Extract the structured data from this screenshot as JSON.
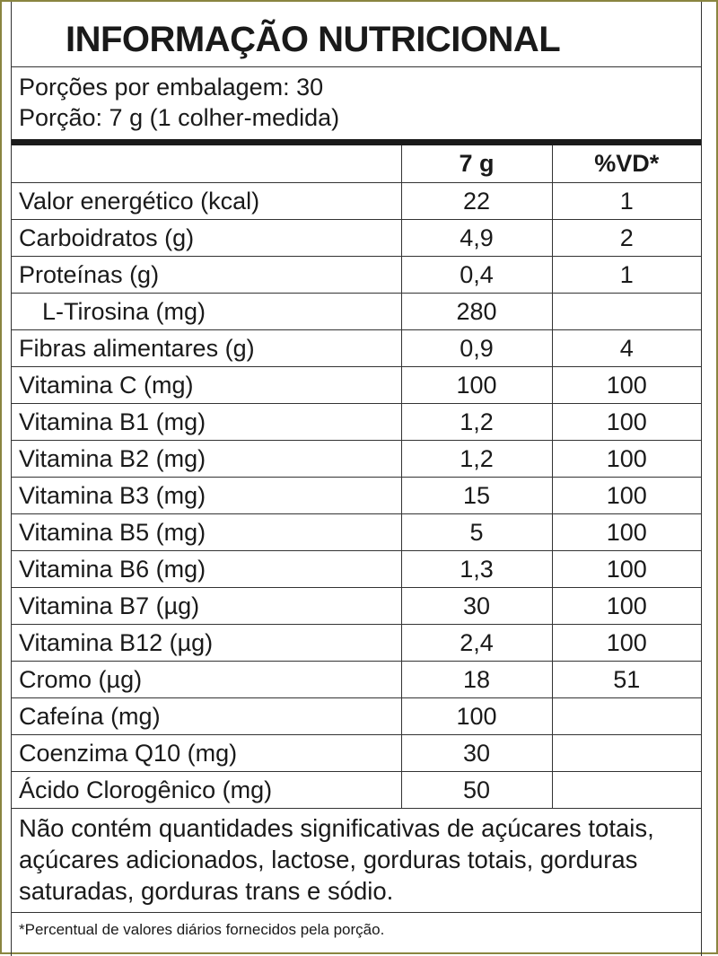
{
  "header": {
    "title": "INFORMAÇÃO NUTRICIONAL",
    "servings": "Porções por embalagem: 30",
    "serving_size": "Porção: 7 g (1 colher-medida)"
  },
  "table": {
    "columns": [
      "7 g",
      "%VD*"
    ],
    "rows": [
      {
        "label": "Valor energético (kcal)",
        "amount": "22",
        "vd": "1"
      },
      {
        "label": "Carboidratos (g)",
        "amount": "4,9",
        "vd": "2"
      },
      {
        "label": "Proteínas (g)",
        "amount": "0,4",
        "vd": "1"
      },
      {
        "label": "L-Tirosina (mg)",
        "amount": "280",
        "indent": true
      },
      {
        "label": "Fibras alimentares (g)",
        "amount": "0,9",
        "vd": "4"
      },
      {
        "label": "Vitamina C (mg)",
        "amount": "100",
        "vd": "100"
      },
      {
        "label": "Vitamina B1 (mg)",
        "amount": "1,2",
        "vd": "100"
      },
      {
        "label": "Vitamina B2 (mg)",
        "amount": "1,2",
        "vd": "100"
      },
      {
        "label": "Vitamina B3 (mg)",
        "amount": "15",
        "vd": "100"
      },
      {
        "label": "Vitamina B5 (mg)",
        "amount": "5",
        "vd": "100"
      },
      {
        "label": "Vitamina B6 (mg)",
        "amount": "1,3",
        "vd": "100"
      },
      {
        "label": "Vitamina B7 (µg)",
        "amount": "30",
        "vd": "100"
      },
      {
        "label": "Vitamina B12 (µg)",
        "amount": "2,4",
        "vd": "100"
      },
      {
        "label": "Cromo (µg)",
        "amount": "18",
        "vd": "51"
      },
      {
        "label": "Cafeína (mg)",
        "amount": "100"
      },
      {
        "label": "Coenzima Q10 (mg)",
        "amount": "30"
      },
      {
        "label": "Ácido Clorogênico (mg)",
        "amount": "50"
      }
    ]
  },
  "footer": {
    "note": "Não contém quantidades significativas de açúcares totais, açúcares adicionados, lactose, gorduras totais, gorduras saturadas, gorduras trans e sódio.",
    "footnote": "*Percentual de valores diários fornecidos pela porção."
  }
}
